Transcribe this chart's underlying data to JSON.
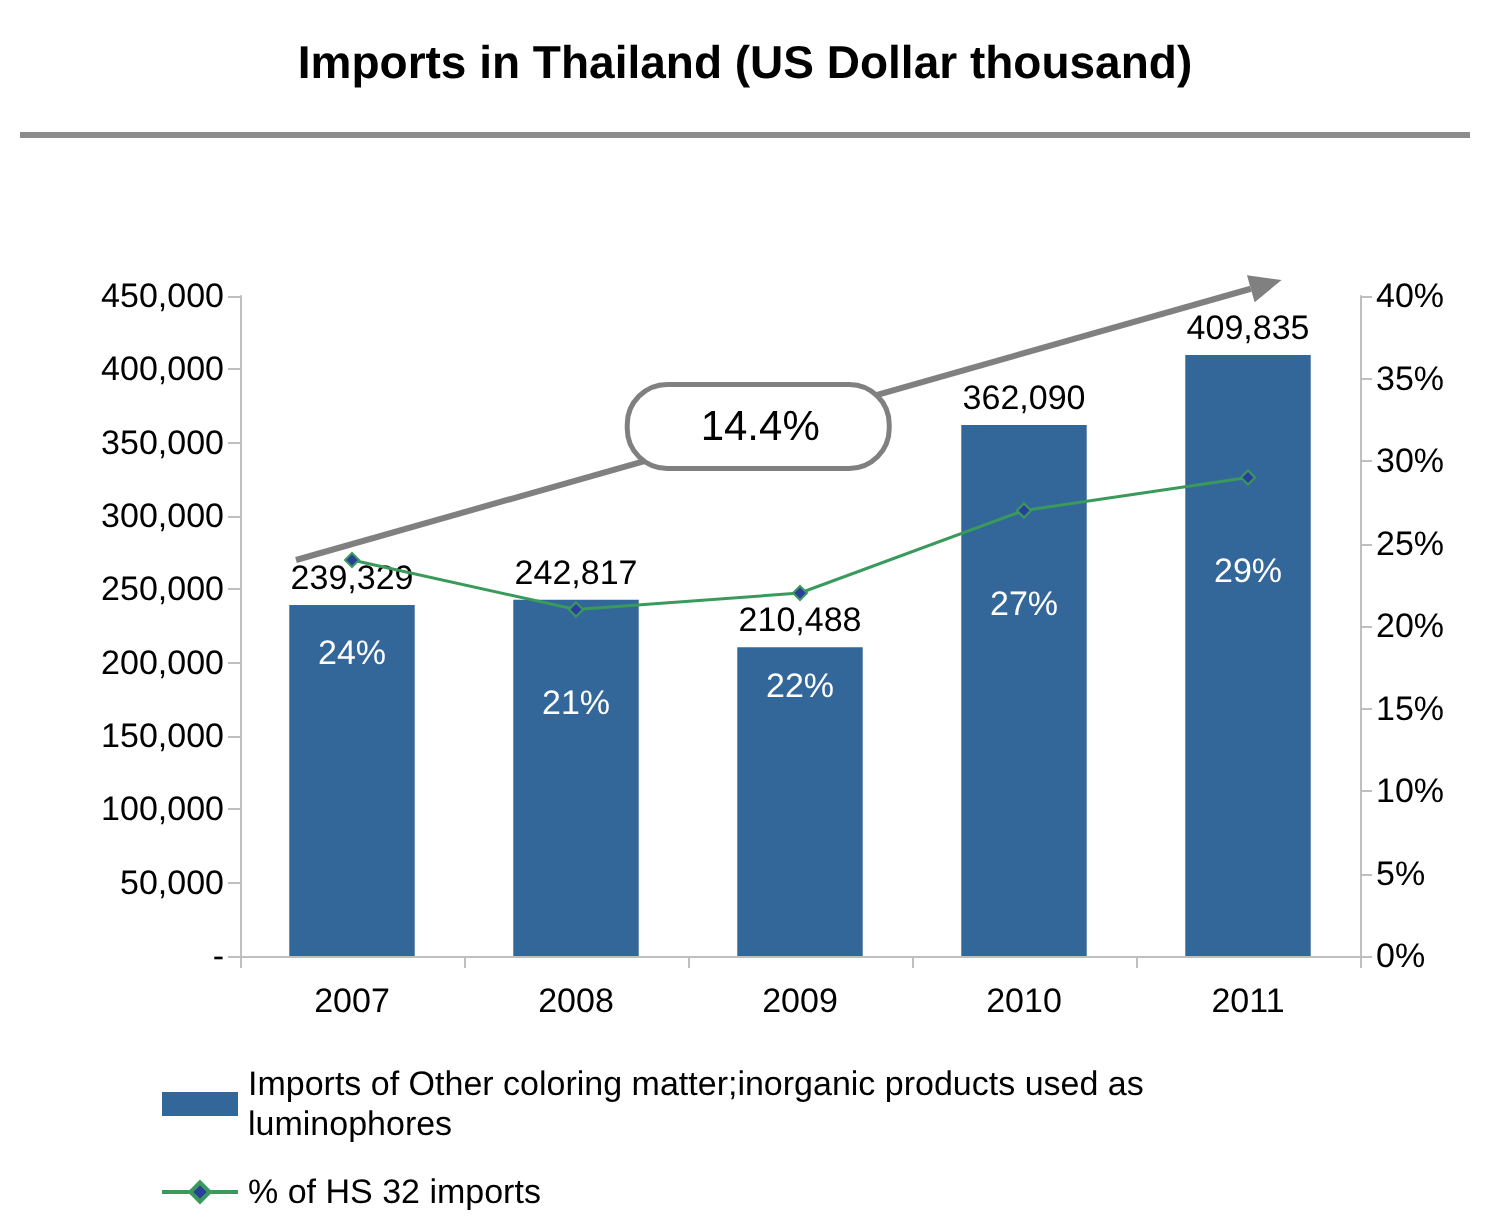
{
  "chart_data": {
    "type": "bar",
    "title": "Imports in Thailand (US Dollar thousand)",
    "categories": [
      "2007",
      "2008",
      "2009",
      "2010",
      "2011"
    ],
    "series": [
      {
        "name": "Imports of Other coloring matter;inorganic products used as luminophores",
        "color": "#336699",
        "values": [
          239329,
          242817,
          210488,
          362090,
          409835
        ],
        "value_labels": [
          "239,329",
          "242,817",
          "210,488",
          "362,090",
          "409,835"
        ]
      },
      {
        "name": "% of HS 32 imports",
        "type": "line",
        "axis": "y2",
        "color": "#3a9a5c",
        "values": [
          24,
          21,
          22,
          27,
          29
        ],
        "value_labels": [
          "24%",
          "21%",
          "22%",
          "27%",
          "29%"
        ]
      }
    ],
    "ylim": [
      0,
      450000
    ],
    "yticks": [
      {
        "value": 0,
        "label": "-"
      },
      {
        "value": 50000,
        "label": "50,000"
      },
      {
        "value": 100000,
        "label": "100,000"
      },
      {
        "value": 150000,
        "label": "150,000"
      },
      {
        "value": 200000,
        "label": "200,000"
      },
      {
        "value": 250000,
        "label": "250,000"
      },
      {
        "value": 300000,
        "label": "300,000"
      },
      {
        "value": 350000,
        "label": "350,000"
      },
      {
        "value": 400000,
        "label": "400,000"
      },
      {
        "value": 450000,
        "label": "450,000"
      }
    ],
    "y2lim": [
      0,
      40
    ],
    "y2ticks": [
      {
        "value": 0,
        "label": "0%"
      },
      {
        "value": 5,
        "label": "5%"
      },
      {
        "value": 10,
        "label": "10%"
      },
      {
        "value": 15,
        "label": "15%"
      },
      {
        "value": 20,
        "label": "20%"
      },
      {
        "value": 25,
        "label": "25%"
      },
      {
        "value": 30,
        "label": "30%"
      },
      {
        "value": 35,
        "label": "35%"
      },
      {
        "value": 40,
        "label": "40%"
      }
    ],
    "annotations": [
      "14.4%"
    ],
    "marker": "diamond",
    "line_style": "solid",
    "grid": false,
    "legend": "bottom"
  }
}
